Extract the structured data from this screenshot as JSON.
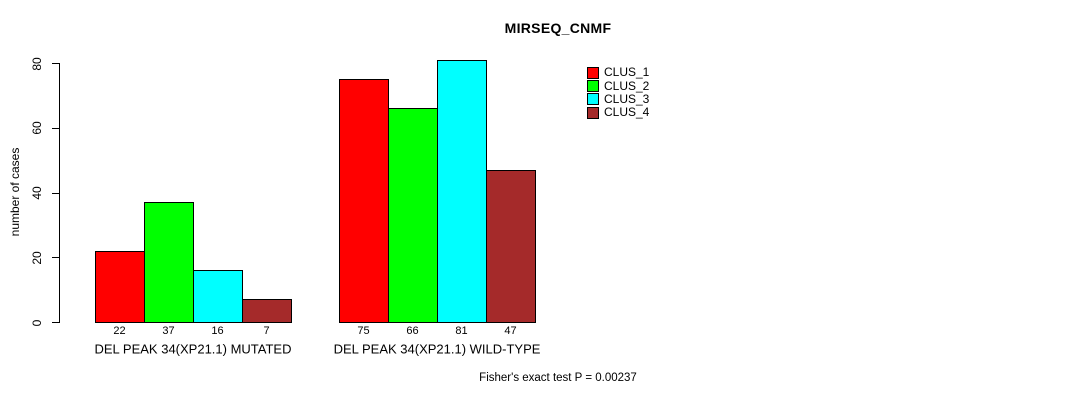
{
  "page": {
    "background_color": "#ffffff",
    "text_color": "#000000",
    "axis_color": "#000000"
  },
  "chart_data": {
    "type": "bar",
    "title": "MIRSEQ_CNMF",
    "xlabel": "",
    "ylabel": "number of cases",
    "ylim": [
      0,
      80
    ],
    "y_ticks": [
      0,
      20,
      40,
      60,
      80
    ],
    "grid": false,
    "legend_position": "top-right",
    "bar_borders": "#000000",
    "categories": [
      "DEL PEAK 34(XP21.1) MUTATED",
      "DEL PEAK 34(XP21.1) WILD-TYPE"
    ],
    "series": [
      {
        "name": "CLUS_1",
        "color": "#FF0000",
        "values": [
          22,
          75
        ]
      },
      {
        "name": "CLUS_2",
        "color": "#00FF00",
        "values": [
          37,
          66
        ]
      },
      {
        "name": "CLUS_3",
        "color": "#00FFFF",
        "values": [
          16,
          81
        ]
      },
      {
        "name": "CLUS_4",
        "color": "#A52A2A",
        "values": [
          7,
          47
        ]
      }
    ],
    "value_labels_shown": true,
    "annotation": "Fisher's exact test P = 0.00237"
  }
}
